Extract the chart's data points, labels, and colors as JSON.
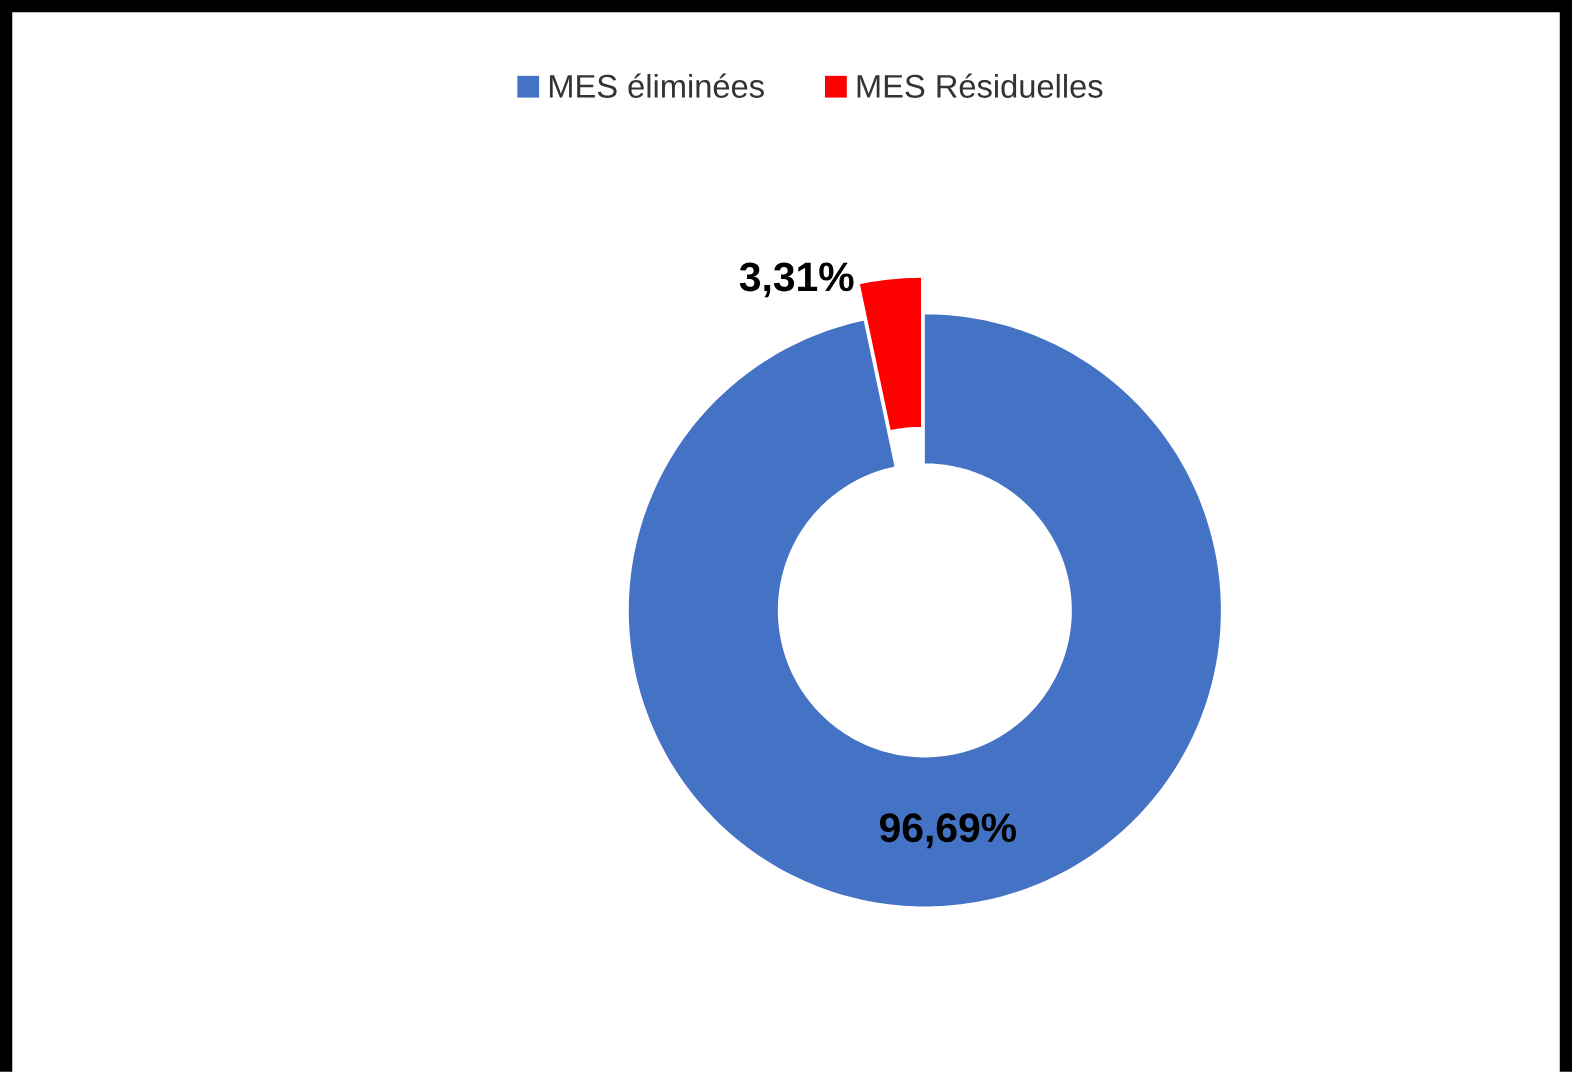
{
  "chart_data": {
    "type": "donut",
    "categories": [
      "MES éliminées",
      "MES Résiduelles"
    ],
    "values": [
      96.69,
      3.31
    ],
    "colors": [
      "#4472c4",
      "#ff0000"
    ],
    "value_labels": [
      "96,69%",
      "3,31%"
    ],
    "legend": "top"
  }
}
